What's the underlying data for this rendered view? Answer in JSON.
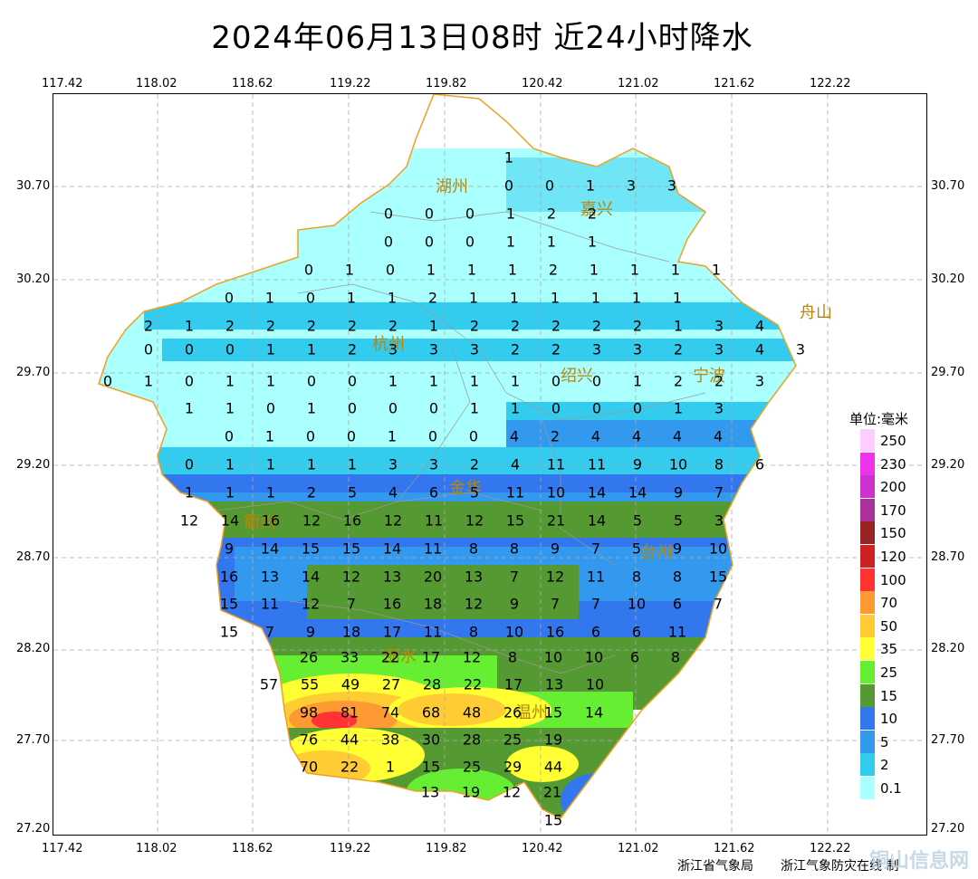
{
  "title": "2024年06月13日08时  近24小时降水",
  "x_ticks": [
    "117.42",
    "118.02",
    "118.62",
    "119.22",
    "119.82",
    "120.42",
    "121.02",
    "121.62",
    "122.22"
  ],
  "y_ticks": [
    "30.70",
    "30.20",
    "29.70",
    "29.20",
    "28.70",
    "28.20",
    "27.70",
    "27.20"
  ],
  "legend": {
    "title": "单位:毫米",
    "items": [
      {
        "label": "250",
        "color": "#ffccff"
      },
      {
        "label": "230",
        "color": "#ee33ee"
      },
      {
        "label": "200",
        "color": "#cc33cc"
      },
      {
        "label": "170",
        "color": "#aa3399"
      },
      {
        "label": "150",
        "color": "#992222"
      },
      {
        "label": "120",
        "color": "#cc2222"
      },
      {
        "label": "100",
        "color": "#ff3333"
      },
      {
        "label": "70",
        "color": "#ff9933"
      },
      {
        "label": "50",
        "color": "#ffcc33"
      },
      {
        "label": "35",
        "color": "#ffff33"
      },
      {
        "label": "25",
        "color": "#66ee33"
      },
      {
        "label": "15",
        "color": "#559933"
      },
      {
        "label": "10",
        "color": "#3377ee"
      },
      {
        "label": "5",
        "color": "#3399ee"
      },
      {
        "label": "2",
        "color": "#33ccee"
      },
      {
        "label": "0.1",
        "color": "#aaffff"
      }
    ]
  },
  "cities": [
    "湖州",
    "嘉兴",
    "杭州",
    "绍兴",
    "宁波",
    "舟山",
    "金华",
    "衢州",
    "台州",
    "丽水",
    "温州"
  ],
  "station_rows": [
    [
      "1"
    ],
    [
      "0",
      "0",
      "1",
      "3",
      "3"
    ],
    [
      "0",
      "0",
      "0",
      "1",
      "2",
      "2"
    ],
    [
      "0",
      "0",
      "0",
      "1",
      "1",
      "1"
    ],
    [
      "0",
      "1",
      "0",
      "1",
      "1",
      "1",
      "2",
      "1",
      "1",
      "1",
      "1"
    ],
    [
      "0",
      "1",
      "0",
      "1",
      "1",
      "2",
      "1",
      "1",
      "1",
      "1",
      "1",
      "1"
    ],
    [
      "2",
      "1",
      "2",
      "2",
      "2",
      "2",
      "2",
      "1",
      "2",
      "2",
      "2",
      "2",
      "2",
      "1",
      "3",
      "4"
    ],
    [
      "0",
      "0",
      "0",
      "1",
      "1",
      "2",
      "3",
      "3",
      "3",
      "2",
      "2",
      "3",
      "3",
      "2",
      "3",
      "4",
      "3"
    ],
    [
      "0",
      "1",
      "0",
      "1",
      "1",
      "0",
      "0",
      "1",
      "1",
      "1",
      "1",
      "0",
      "0",
      "1",
      "2",
      "2",
      "3"
    ],
    [
      "1",
      "1",
      "0",
      "1",
      "0",
      "0",
      "0",
      "1",
      "1",
      "0",
      "0",
      "0",
      "1",
      "3"
    ],
    [
      "0",
      "1",
      "0",
      "0",
      "1",
      "0",
      "0",
      "4",
      "2",
      "4",
      "4",
      "4",
      "4"
    ],
    [
      "0",
      "1",
      "1",
      "1",
      "1",
      "3",
      "3",
      "2",
      "4",
      "11",
      "11",
      "9",
      "10",
      "8",
      "6"
    ],
    [
      "1",
      "1",
      "1",
      "2",
      "5",
      "4",
      "6",
      "5",
      "11",
      "10",
      "14",
      "14",
      "9",
      "7"
    ],
    [
      "12",
      "14",
      "16",
      "12",
      "16",
      "12",
      "11",
      "12",
      "15",
      "21",
      "14",
      "5",
      "5",
      "3"
    ],
    [
      "9",
      "14",
      "15",
      "15",
      "14",
      "11",
      "8",
      "8",
      "9",
      "7",
      "5",
      "9",
      "10"
    ],
    [
      "16",
      "13",
      "14",
      "12",
      "13",
      "20",
      "13",
      "7",
      "12",
      "11",
      "8",
      "8",
      "15"
    ],
    [
      "15",
      "11",
      "12",
      "7",
      "16",
      "18",
      "12",
      "9",
      "7",
      "7",
      "10",
      "6",
      "7"
    ],
    [
      "15",
      "7",
      "9",
      "18",
      "17",
      "11",
      "8",
      "10",
      "16",
      "6",
      "6",
      "11"
    ],
    [
      "26",
      "33",
      "22",
      "17",
      "12",
      "8",
      "10",
      "10",
      "6",
      "8"
    ],
    [
      "57",
      "55",
      "49",
      "27",
      "28",
      "22",
      "17",
      "13",
      "10"
    ],
    [
      "98",
      "81",
      "74",
      "68",
      "48",
      "26",
      "15",
      "14"
    ],
    [
      "76",
      "44",
      "38",
      "30",
      "28",
      "25",
      "19"
    ],
    [
      "70",
      "22",
      "1",
      "15",
      "25",
      "29",
      "44"
    ],
    [
      "13",
      "19",
      "12",
      "21"
    ],
    [
      "15"
    ]
  ],
  "footer": {
    "left": "浙江省气象局",
    "right": "浙江气象防灾在线 制"
  },
  "watermark": "铜山信息网"
}
